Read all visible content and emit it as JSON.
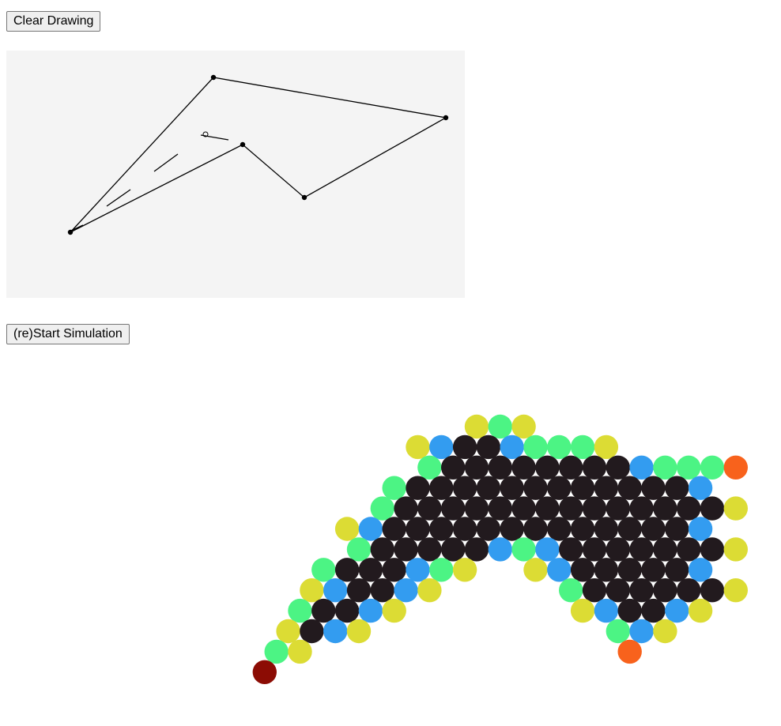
{
  "controls": {
    "clear_label": "Clear Drawing",
    "restart_label": "(re)Start Simulation"
  },
  "colors": {
    "canvas_bg": "#f4f4f4",
    "line": "#000000",
    "body": "#221a1e",
    "blue": "#339cf0",
    "green": "#4cf484",
    "yellow": "#dcdc34",
    "orange": "#f8621c",
    "dark_red": "#8c0c04"
  },
  "palette_key": {
    "B": "body",
    "U": "blue",
    "G": "green",
    "Y": "yellow",
    "O": "orange",
    "R": "dark_red"
  },
  "sim_rows": [
    "..........YGY.........",
    "........YUBBUGGGY.....",
    "........GBBBBBBBBUGGGO",
    ".......GBBBBBBBBBBBBU.",
    "......GBBBBBBBBBBBBBBY",
    ".....YUBBBBBBBBBBBBBU.",
    ".....GBBBBBUGUBBBBBBBY",
    "....GBBBUGY..YUBBBBBU.",
    "...YUBBUY.....GBBBBBBY",
    "...GBBUY.......YUBBUY.",
    "..YBUY..........GUY...",
    "..GY.............O....",
    ".R...................."
  ]
}
